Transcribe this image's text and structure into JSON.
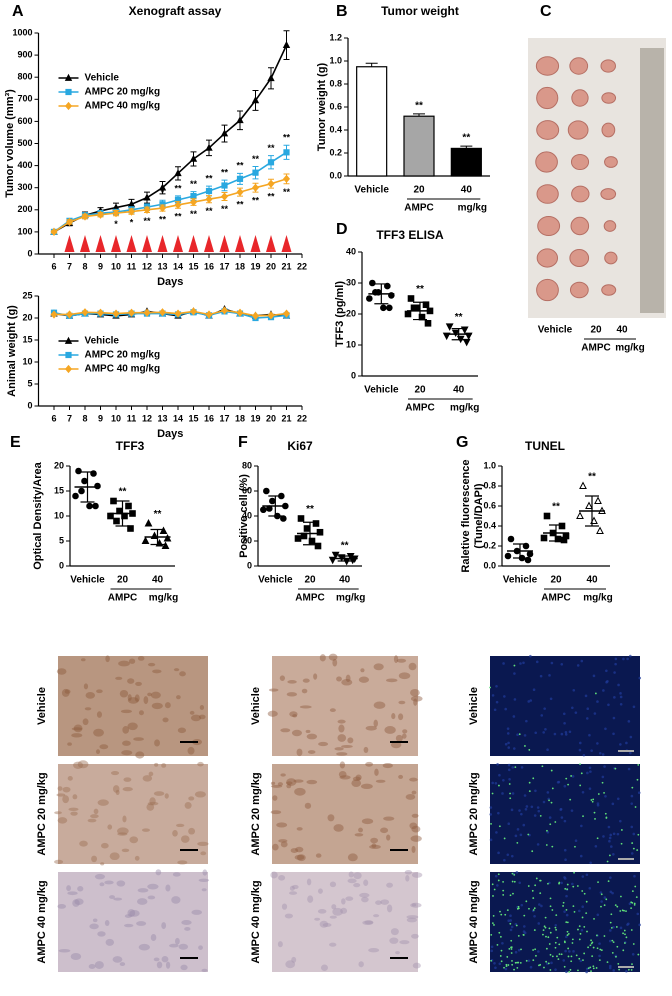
{
  "panel_letters": [
    "A",
    "B",
    "C",
    "D",
    "E",
    "F",
    "G"
  ],
  "chart_data": [
    {
      "type": "line",
      "title": "Xenograft assay",
      "x_label": "Days",
      "y_label": "Tumor volume (mm³)",
      "x": [
        6,
        7,
        8,
        9,
        10,
        11,
        12,
        13,
        14,
        15,
        16,
        17,
        18,
        19,
        20,
        21
      ],
      "xlim": [
        5,
        22
      ],
      "xticks": [
        6,
        7,
        8,
        9,
        10,
        11,
        12,
        13,
        14,
        15,
        16,
        17,
        18,
        19,
        20,
        21,
        22
      ],
      "ylim": [
        0,
        1000
      ],
      "yticks": [
        0,
        100,
        200,
        300,
        400,
        500,
        600,
        700,
        800,
        900,
        1000
      ],
      "legend": "upper left",
      "treatment_days": [
        7,
        8,
        9,
        10,
        11,
        12,
        13,
        14,
        15,
        16,
        17,
        18,
        19,
        20,
        21
      ],
      "treatment_color": "#e8262a",
      "series": [
        {
          "name": "Vehicle",
          "color": "#000000",
          "marker": "triangle",
          "values": [
            100,
            140,
            175,
            195,
            210,
            225,
            255,
            300,
            365,
            430,
            480,
            545,
            605,
            695,
            795,
            945
          ],
          "errors": [
            8,
            12,
            15,
            15,
            20,
            22,
            25,
            28,
            30,
            32,
            35,
            38,
            42,
            45,
            48,
            65
          ]
        },
        {
          "name": "AMPC 20 mg/kg",
          "color": "#29a8e0",
          "marker": "square",
          "sig_position": "above",
          "values": [
            100,
            150,
            175,
            185,
            190,
            200,
            212,
            225,
            245,
            262,
            285,
            310,
            340,
            368,
            415,
            460
          ],
          "errors": [
            5,
            10,
            12,
            12,
            12,
            14,
            15,
            18,
            18,
            20,
            22,
            24,
            25,
            28,
            30,
            32
          ],
          "sig_labels": [
            null,
            null,
            null,
            null,
            null,
            null,
            null,
            "*",
            "**",
            "**",
            "**",
            "**",
            "**",
            "**",
            "**",
            "**"
          ]
        },
        {
          "name": "AMPC 40 mg/kg",
          "color": "#f5a623",
          "marker": "diamond",
          "sig_position": "below",
          "values": [
            100,
            145,
            170,
            178,
            185,
            192,
            200,
            208,
            222,
            235,
            248,
            260,
            280,
            300,
            318,
            340
          ],
          "errors": [
            5,
            10,
            10,
            10,
            12,
            12,
            12,
            14,
            15,
            15,
            16,
            18,
            18,
            20,
            20,
            22
          ],
          "sig_labels": [
            null,
            null,
            null,
            null,
            "*",
            "*",
            "**",
            "**",
            "**",
            "**",
            "**",
            "**",
            "**",
            "**",
            "**",
            "**"
          ]
        }
      ]
    },
    {
      "type": "line",
      "x_label": "Days",
      "y_label": "Animal weight (g)",
      "x": [
        6,
        7,
        8,
        9,
        10,
        11,
        12,
        13,
        14,
        15,
        16,
        17,
        18,
        19,
        20,
        21
      ],
      "xlim": [
        5,
        22
      ],
      "xticks": [
        6,
        7,
        8,
        9,
        10,
        11,
        12,
        13,
        14,
        15,
        16,
        17,
        18,
        19,
        20,
        21,
        22
      ],
      "ylim": [
        0,
        25
      ],
      "yticks": [
        0,
        5,
        10,
        15,
        20,
        25
      ],
      "legend": "lower left",
      "series": [
        {
          "name": "Vehicle",
          "color": "#000000",
          "marker": "triangle",
          "values": [
            21,
            20.5,
            21,
            20.8,
            20.5,
            20.8,
            21.5,
            21,
            20.5,
            21.5,
            20.5,
            22,
            21,
            20.5,
            20.8,
            20.5
          ]
        },
        {
          "name": "AMPC 20 mg/kg",
          "color": "#29a8e0",
          "marker": "square",
          "values": [
            21.2,
            20.5,
            21,
            21,
            20.8,
            21,
            21,
            21,
            20.8,
            21.3,
            20.6,
            21.5,
            21,
            20,
            20.2,
            20.6
          ]
        },
        {
          "name": "AMPC 40 mg/kg",
          "color": "#f5a623",
          "marker": "diamond",
          "values": [
            20.8,
            20.8,
            21.3,
            21.2,
            21,
            21.2,
            21.2,
            21.3,
            21,
            21.5,
            20.8,
            21.7,
            21.2,
            20.5,
            20.6,
            21
          ]
        }
      ]
    },
    {
      "type": "bar",
      "title": "Tumor weight",
      "y_label": "Tumor weight (g)",
      "categories": [
        "Vehicle",
        "20",
        "40"
      ],
      "group_label": "AMPC",
      "unit_label": "mg/kg",
      "values": [
        0.95,
        0.52,
        0.24
      ],
      "errors": [
        0.03,
        0.02,
        0.02
      ],
      "colors": [
        "#ffffff",
        "#a6a6a6",
        "#000000"
      ],
      "sig_labels": [
        null,
        "**",
        "**"
      ],
      "ylim": [
        0,
        1.2
      ],
      "yticks": [
        {
          "value": 0,
          "label": "0.0"
        },
        0.2,
        0.4,
        0.6,
        0.8,
        {
          "value": 1,
          "label": "1.0"
        },
        1.2
      ]
    },
    {
      "type": "dotplot",
      "title": "TFF3 ELISA",
      "y_label": "TFF3 (pg/ml)",
      "categories": [
        "Vehicle",
        "20",
        "40"
      ],
      "group_label": "AMPC",
      "unit_label": "mg/kg",
      "points": [
        [
          30,
          29,
          27,
          26,
          25,
          22,
          22,
          27
        ],
        [
          25,
          23,
          22,
          21,
          20,
          19,
          17,
          22
        ],
        [
          16,
          15,
          14,
          13,
          13,
          12,
          11
        ]
      ],
      "means": [
        26.5,
        21,
        13.5
      ],
      "sds": [
        3.2,
        2.8,
        1.8
      ],
      "sig_labels": [
        null,
        "**",
        "**"
      ],
      "markers": [
        "circle",
        "square",
        "triangle-down"
      ],
      "marker_filled": [
        true,
        true,
        true
      ],
      "color": "#000000",
      "ylim": [
        0,
        40
      ],
      "yticks": [
        0,
        10,
        20,
        30,
        40
      ]
    },
    {
      "type": "dotplot",
      "title": "TFF3",
      "y_label": "Optical Density/Area",
      "categories": [
        "Vehicle",
        "20",
        "40"
      ],
      "group_label": "AMPC",
      "unit_label": "mg/kg",
      "points": [
        [
          19,
          18.5,
          17,
          16,
          14,
          12,
          12,
          15
        ],
        [
          13,
          12,
          11,
          10.5,
          10,
          10,
          7.5,
          9
        ],
        [
          8.5,
          7,
          6,
          5.5,
          5,
          4.5,
          4
        ]
      ],
      "means": [
        15.8,
        10.5,
        5.8
      ],
      "sds": [
        3,
        2.5,
        1.5
      ],
      "sig_labels": [
        null,
        "**",
        "**"
      ],
      "markers": [
        "circle",
        "square",
        "triangle"
      ],
      "marker_filled": [
        true,
        true,
        true
      ],
      "color": "#000000",
      "ylim": [
        0,
        20
      ],
      "yticks": [
        0,
        5,
        10,
        15,
        20
      ]
    },
    {
      "type": "dotplot",
      "title": "Ki67",
      "y_label": "Positive cell (%)",
      "categories": [
        "Vehicle",
        "20",
        "40"
      ],
      "group_label": "AMPC",
      "unit_label": "mg/kg",
      "points": [
        [
          60,
          56,
          52,
          48,
          45,
          40,
          38,
          46
        ],
        [
          38,
          34,
          30,
          27,
          22,
          20,
          16,
          24
        ],
        [
          9,
          8,
          7,
          6,
          5,
          4,
          5
        ]
      ],
      "means": [
        48,
        26,
        6
      ],
      "sds": [
        8,
        9,
        2
      ],
      "sig_labels": [
        null,
        "**",
        "**"
      ],
      "markers": [
        "circle",
        "square",
        "triangle-down"
      ],
      "marker_filled": [
        true,
        true,
        true
      ],
      "color": "#000000",
      "ylim": [
        0,
        80
      ],
      "yticks": [
        0,
        20,
        40,
        60,
        80
      ]
    },
    {
      "type": "dotplot",
      "title": "TUNEL",
      "y_label": [
        "Raletive fluorescence",
        "(Tunel/DAPI)"
      ],
      "categories": [
        "Vehicle",
        "20",
        "40"
      ],
      "group_label": "AMPC",
      "unit_label": "mg/kg",
      "points": [
        [
          0.27,
          0.2,
          0.15,
          0.12,
          0.1,
          0.08,
          0.06
        ],
        [
          0.5,
          0.4,
          0.33,
          0.3,
          0.28,
          0.27,
          0.26
        ],
        [
          0.8,
          0.65,
          0.6,
          0.55,
          0.5,
          0.45,
          0.35
        ]
      ],
      "means": [
        0.15,
        0.33,
        0.55
      ],
      "sds": [
        0.07,
        0.08,
        0.15
      ],
      "sig_labels": [
        null,
        "**",
        "**"
      ],
      "markers": [
        "circle",
        "square",
        "triangle"
      ],
      "marker_filled": [
        true,
        true,
        false
      ],
      "color": "#000000",
      "ylim": [
        0,
        1
      ],
      "yticks": [
        {
          "value": 0,
          "label": "0.0"
        },
        0.2,
        0.4,
        0.6,
        0.8,
        {
          "value": 1,
          "label": "1.0"
        }
      ]
    }
  ],
  "photo": {
    "categories": [
      "Vehicle",
      "20",
      "40"
    ],
    "group_label": "AMPC",
    "unit_label": "mg/kg"
  },
  "micrograph_rows": [
    "Vehicle",
    "AMPC 20 mg/kg",
    "AMPC 40 mg/kg"
  ]
}
